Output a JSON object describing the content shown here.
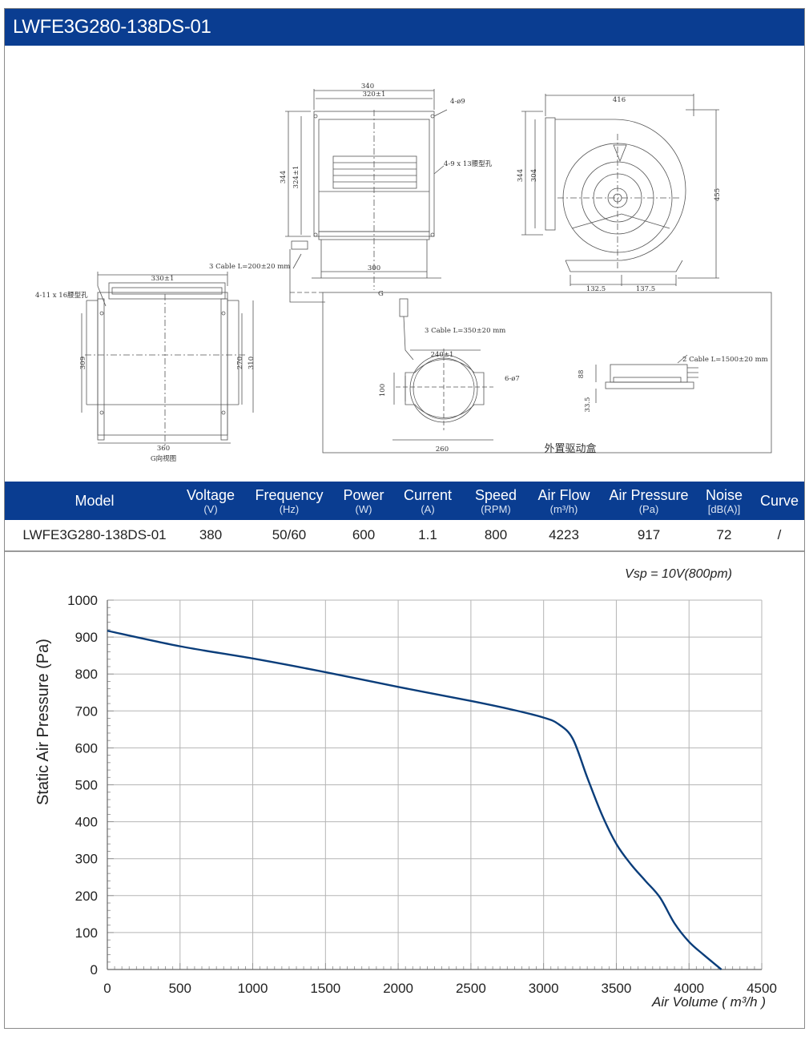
{
  "title": "LWFE3G280-138DS-01",
  "drawing": {
    "front": {
      "w340": "340",
      "w320": "320±1",
      "holes4": "4-ø9",
      "slots": "4-9 x 13腰型孔",
      "h344": "344",
      "h324": "324±1",
      "cable": "3 Cable L=200±20 mm",
      "w300": "300",
      "g": "G"
    },
    "side": {
      "w416": "416",
      "h344": "344",
      "h304": "304",
      "h455": "455",
      "d132": "132.5",
      "d137": "137.5"
    },
    "bottom": {
      "w330": "330±1",
      "slots": "4-11 x 16腰型孔",
      "h309": "309",
      "h270": "270",
      "h310": "310",
      "w360": "360",
      "label": "G向视图"
    },
    "driver": {
      "cable350": "3 Cable L=350±20 mm",
      "w240": "240±1",
      "holes6": "6-ø7",
      "h100": "100",
      "w260": "260",
      "cable1500": "2 Cable L=1500±20 mm",
      "h88": "88",
      "h33": "33.5",
      "label": "外置驱动盒"
    }
  },
  "table": {
    "headers": [
      {
        "name": "Model",
        "unit": ""
      },
      {
        "name": "Voltage",
        "unit": "(V)"
      },
      {
        "name": "Frequency",
        "unit": "(Hz)"
      },
      {
        "name": "Power",
        "unit": "(W)"
      },
      {
        "name": "Current",
        "unit": "(A)"
      },
      {
        "name": "Speed",
        "unit": "(RPM)"
      },
      {
        "name": "Air Flow",
        "unit": "(m³/h)"
      },
      {
        "name": "Air Pressure",
        "unit": "(Pa)"
      },
      {
        "name": "Noise",
        "unit": "[dB(A)]"
      },
      {
        "name": "Curve",
        "unit": ""
      }
    ],
    "row": [
      "LWFE3G280-138DS-01",
      "380",
      "50/60",
      "600",
      "1.1",
      "800",
      "4223",
      "917",
      "72",
      "/"
    ]
  },
  "chart_data": {
    "type": "line",
    "title": "",
    "annotation": "Vsp = 10V(800pm)",
    "xlabel": "Air Volume ( m³/h )",
    "ylabel": "Static Air Pressure  (Pa)",
    "xlim": [
      0,
      4500
    ],
    "ylim": [
      0,
      1000
    ],
    "xticks": [
      0,
      500,
      1000,
      1500,
      2000,
      2500,
      3000,
      3500,
      4000,
      4500
    ],
    "yticks": [
      0,
      100,
      200,
      300,
      400,
      500,
      600,
      700,
      800,
      900,
      1000
    ],
    "grid": true,
    "series": [
      {
        "color": "#0a3d7a",
        "x": [
          0,
          500,
          1000,
          1500,
          2000,
          2500,
          2800,
          3000,
          3100,
          3200,
          3300,
          3400,
          3500,
          3600,
          3700,
          3800,
          3900,
          4000,
          4100,
          4223
        ],
        "y": [
          917,
          875,
          842,
          805,
          765,
          727,
          702,
          682,
          665,
          625,
          520,
          420,
          340,
          285,
          240,
          195,
          125,
          75,
          40,
          0
        ]
      }
    ]
  }
}
